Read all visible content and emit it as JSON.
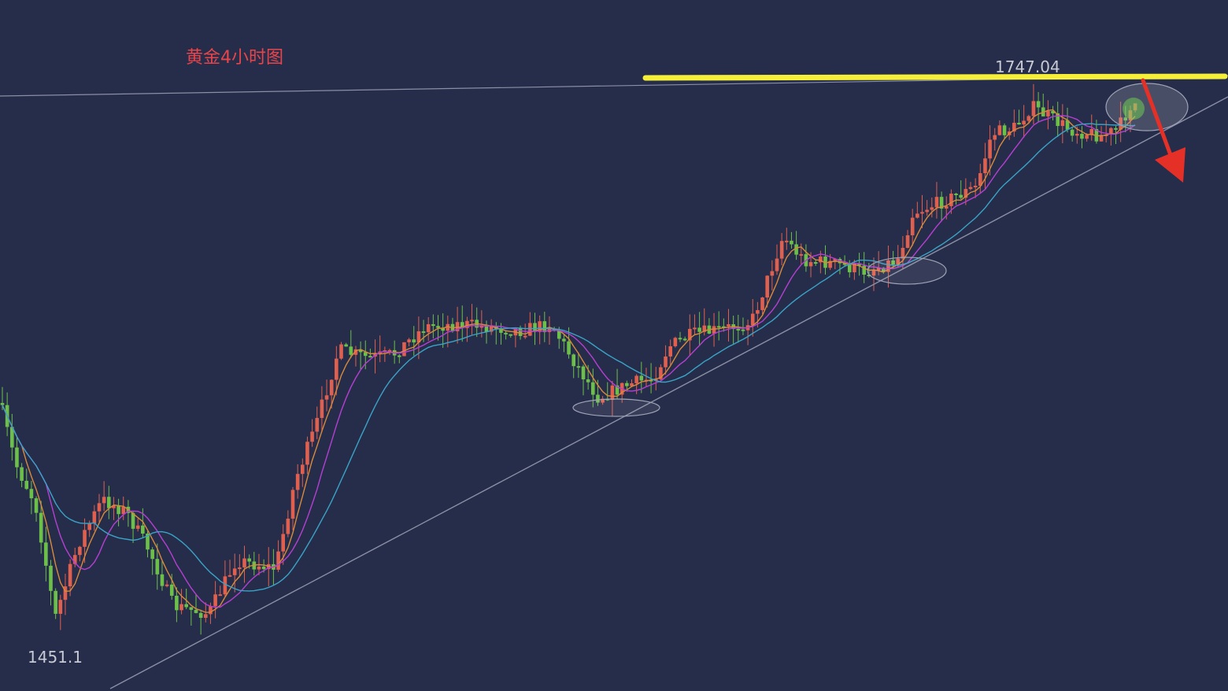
{
  "chart_data": {
    "type": "candlestick",
    "title": "黄金4小时图",
    "annotations": {
      "high_label": "1747.04",
      "low_label": "1451.1",
      "resistance": 1747.04
    },
    "ylim": [
      1440,
      1760
    ],
    "colors": {
      "background": "#262d4a",
      "up": "#e0604f",
      "down": "#6cc04a",
      "ma_fast": "#d98a3a",
      "ma_mid": "#b63fd2",
      "ma_slow": "#3aa3c6",
      "resistance_line": "#f5ef3a",
      "trend_line": "#8a8fa3",
      "arrow": "#e53028",
      "title": "#e8454a",
      "labels": "#c7c9d3"
    },
    "trend_line": {
      "start": [
        0,
        1440
      ],
      "end": [
        188,
        1738
      ]
    },
    "ellipses": [
      {
        "at": 99,
        "price": 1566
      },
      {
        "at": 137,
        "price": 1610
      },
      {
        "at": 178,
        "price": 1738
      }
    ]
  }
}
